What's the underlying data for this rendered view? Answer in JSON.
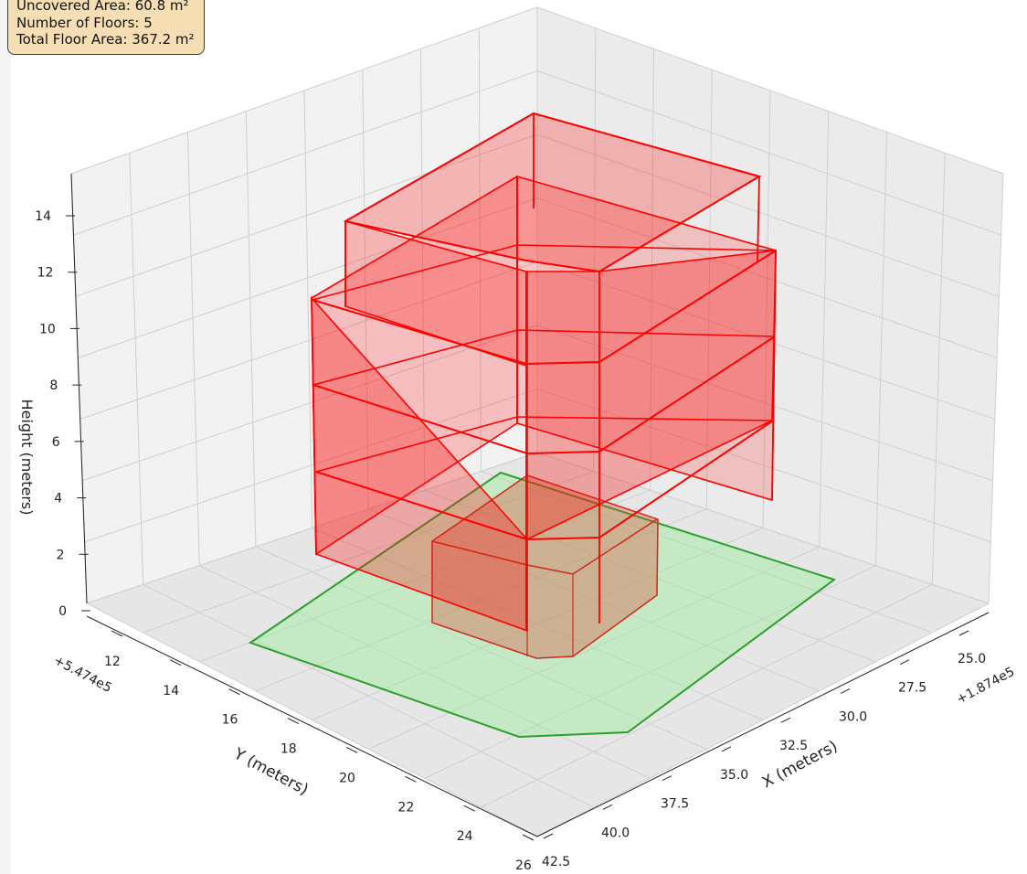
{
  "info_box": {
    "uncovered_area": "Uncovered Area: 60.8 m²",
    "floors": "Number of Floors: 5",
    "total_floor_area": "Total Floor Area: 367.2 m²"
  },
  "chart_data": {
    "type": "3d-polygons",
    "axes": {
      "x": {
        "label": "X (meters)",
        "offset": "+1.874e5",
        "ticks": [
          "25.0",
          "27.5",
          "30.0",
          "32.5",
          "35.0",
          "37.5",
          "40.0",
          "42.5"
        ],
        "range": [
          25.0,
          42.5
        ]
      },
      "y": {
        "label": "Y (meters)",
        "offset": "+5.474e5",
        "ticks": [
          "12",
          "14",
          "16",
          "18",
          "20",
          "22",
          "24",
          "26"
        ],
        "range": [
          12,
          26
        ]
      },
      "z": {
        "label": "Height (meters)",
        "ticks": [
          "0",
          "2",
          "4",
          "6",
          "8",
          "10",
          "12",
          "14"
        ],
        "range": [
          0,
          15
        ]
      },
      "grid": true
    },
    "lot": {
      "color": "#2ca02c",
      "fill": "#90ee90",
      "height": 0
    },
    "building": {
      "color": "#ff0000",
      "floors": 5,
      "floor_height": 3
    }
  }
}
